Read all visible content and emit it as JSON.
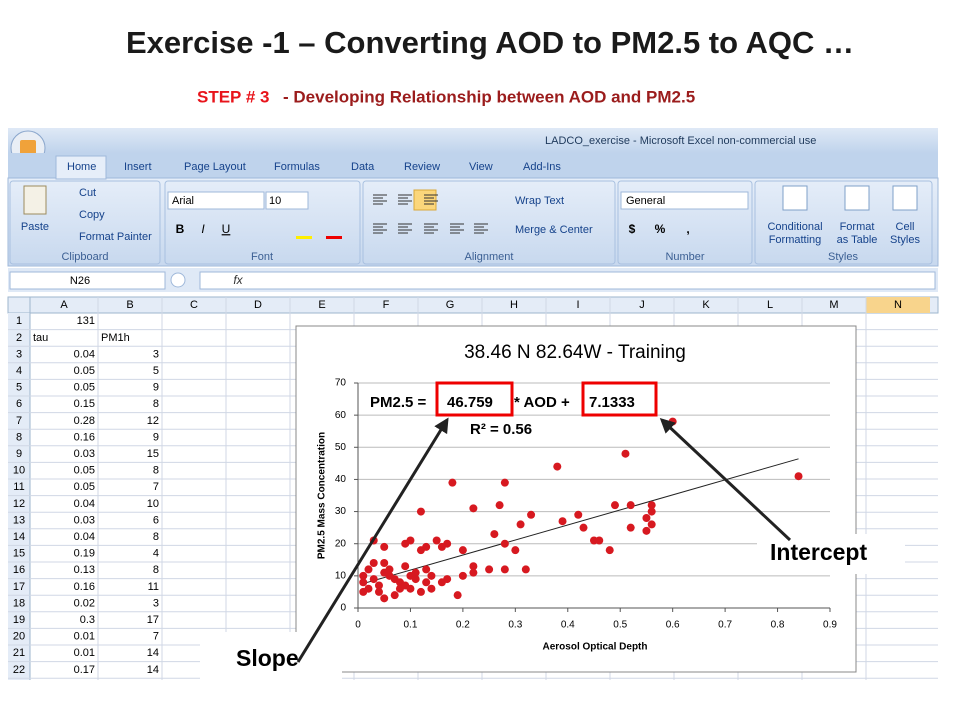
{
  "slide": {
    "title": "Exercise -1 – Converting AOD to PM2.5 to AQC …",
    "step": "STEP # 3",
    "subtitle": "- Developing Relationship between AOD and PM2.5"
  },
  "excel": {
    "window_title": "LADCO_exercise - Microsoft Excel non-commercial use",
    "tabs": [
      "Home",
      "Insert",
      "Page Layout",
      "Formulas",
      "Data",
      "Review",
      "View",
      "Add-Ins"
    ],
    "ribbon": {
      "clipboard": {
        "paste": "Paste",
        "cut": "Cut",
        "copy": "Copy",
        "format_painter": "Format Painter",
        "label": "Clipboard"
      },
      "font": {
        "name": "Arial",
        "size": "10",
        "buttons": [
          "B",
          "I",
          "U"
        ],
        "label": "Font"
      },
      "alignment": {
        "wrap": "Wrap Text",
        "merge": "Merge & Center",
        "label": "Alignment"
      },
      "number": {
        "format": "General",
        "buttons": [
          "$",
          "%",
          ","
        ],
        "label": "Number"
      },
      "styles": {
        "conditional": [
          "Conditional",
          "Formatting"
        ],
        "format_table": [
          "Format",
          "as Table"
        ],
        "cell_styles": [
          "Cell",
          "Styles"
        ],
        "label": "Styles"
      }
    },
    "name_box": "N26",
    "fx": "fx",
    "columns": [
      "A",
      "B",
      "C",
      "D",
      "E",
      "F",
      "G",
      "H",
      "I",
      "J",
      "K",
      "L",
      "M",
      "N"
    ],
    "rows": [
      [
        "1",
        "131"
      ],
      [
        "2",
        "tau",
        "PM1h"
      ],
      [
        "3",
        "0.04",
        "3"
      ],
      [
        "4",
        "0.05",
        "5"
      ],
      [
        "5",
        "0.05",
        "9"
      ],
      [
        "6",
        "0.15",
        "8"
      ],
      [
        "7",
        "0.28",
        "12"
      ],
      [
        "8",
        "0.16",
        "9"
      ],
      [
        "9",
        "0.03",
        "15"
      ],
      [
        "10",
        "0.05",
        "8"
      ],
      [
        "11",
        "0.05",
        "7"
      ],
      [
        "12",
        "0.04",
        "10"
      ],
      [
        "13",
        "0.03",
        "6"
      ],
      [
        "14",
        "0.04",
        "8"
      ],
      [
        "15",
        "0.19",
        "4"
      ],
      [
        "16",
        "0.13",
        "8"
      ],
      [
        "17",
        "0.16",
        "11"
      ],
      [
        "18",
        "0.02",
        "3"
      ],
      [
        "19",
        "0.3",
        "17"
      ],
      [
        "20",
        "0.01",
        "7"
      ],
      [
        "21",
        "0.01",
        "14"
      ],
      [
        "22",
        "0.17",
        "14"
      ]
    ]
  },
  "chart": {
    "type": "scatter",
    "title": "38.46 N 82.64W - Training",
    "xlabel": "Aerosol Optical Depth",
    "ylabel": "PM2.5 Mass Concentration",
    "color": "#d71920",
    "x": [
      0.84,
      0.6,
      0.51,
      0.38,
      0.18,
      0.28,
      0.12,
      0.22,
      0.27,
      0.33,
      0.31,
      0.39,
      0.42,
      0.43,
      0.49,
      0.52,
      0.55,
      0.56,
      0.56,
      0.56,
      0.52,
      0.55,
      0.45,
      0.46,
      0.48,
      0.28,
      0.3,
      0.26,
      0.2,
      0.17,
      0.15,
      0.16,
      0.13,
      0.12,
      0.1,
      0.09,
      0.05,
      0.03,
      0.22,
      0.25,
      0.28,
      0.32,
      0.2,
      0.22,
      0.19,
      0.14,
      0.16,
      0.17,
      0.14,
      0.13,
      0.11,
      0.1,
      0.09,
      0.08,
      0.07,
      0.06,
      0.05,
      0.04,
      0.03,
      0.02,
      0.01,
      0.01,
      0.02,
      0.03,
      0.05,
      0.06,
      0.07,
      0.08,
      0.09,
      0.1,
      0.11,
      0.12,
      0.13,
      0.05,
      0.01,
      0.04
    ],
    "values": [
      41,
      58,
      48,
      44,
      39,
      39,
      30,
      31,
      32,
      29,
      26,
      27,
      29,
      25,
      32,
      32,
      28,
      30,
      32,
      26,
      25,
      24,
      21,
      21,
      18,
      20,
      18,
      23,
      18,
      20,
      21,
      19,
      19,
      18,
      21,
      20,
      19,
      21,
      13,
      12,
      12,
      12,
      10,
      11,
      4,
      6,
      8,
      9,
      10,
      12,
      11,
      10,
      13,
      8,
      9,
      10,
      11,
      7,
      9,
      6,
      5,
      8,
      12,
      14,
      14,
      12,
      4,
      6,
      7,
      6,
      9,
      5,
      8,
      3,
      10,
      5
    ],
    "xlim": [
      0,
      0.9
    ],
    "ylim": [
      0,
      70
    ],
    "xticks": [
      0,
      0.1,
      0.2,
      0.3,
      0.4,
      0.5,
      0.6,
      0.7,
      0.8,
      0.9
    ],
    "yticks": [
      0,
      10,
      20,
      30,
      40,
      50,
      60,
      70
    ],
    "grid": true,
    "trendline": {
      "prefix": "PM2.5 =",
      "slope": 46.759,
      "middle": "* AOD +",
      "intercept": 7.1333,
      "r2": "R² = 0.56"
    }
  },
  "annotations": {
    "slope": "Slope",
    "intercept": "Intercept"
  }
}
